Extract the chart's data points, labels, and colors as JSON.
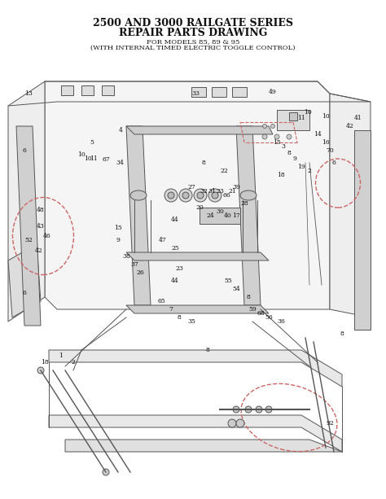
{
  "title_line1": "2500 AND 3000 RAILGATE SERIES",
  "title_line2": "REPAIR PARTS DRAWING",
  "subtitle_line1": "FOR MODELS 85, 89 & 95",
  "subtitle_line2": "(WITH INTERNAL TIMED ELECTRIC TOGGLE CONTROL)",
  "bg_color": "#ffffff",
  "fig_width": 4.74,
  "fig_height": 6.13,
  "dpi": 100,
  "title_fontsize": 9,
  "title2_fontsize": 9,
  "subtitle_fontsize": 6,
  "part_label_fontsize": 5.5
}
